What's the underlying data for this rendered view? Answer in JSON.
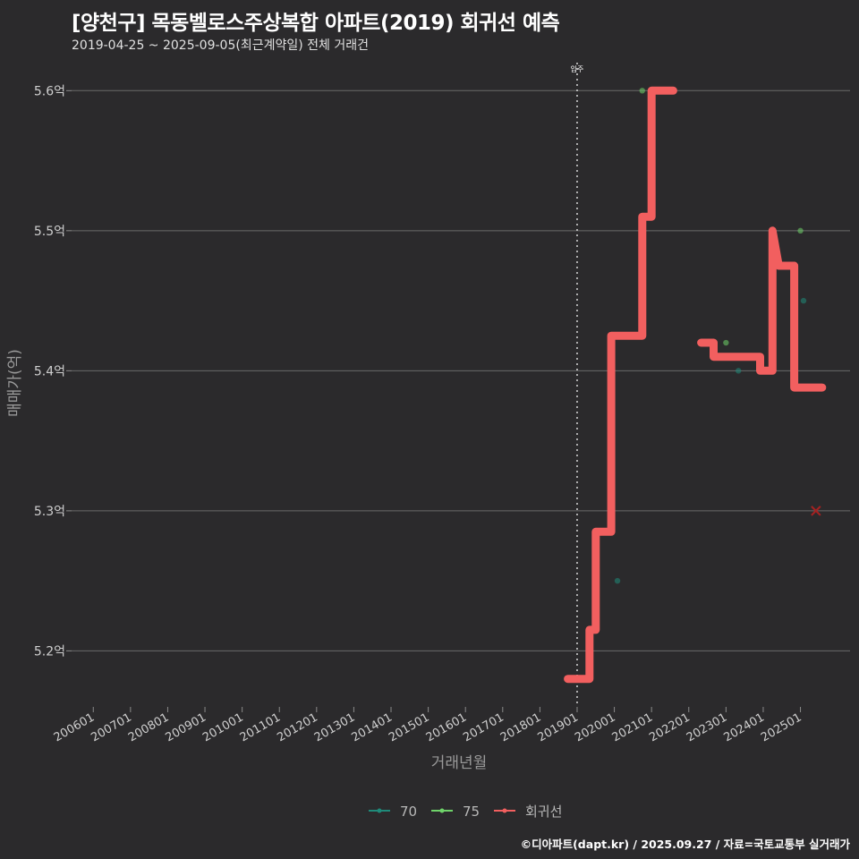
{
  "header": {
    "title": "[양천구] 목동벨로스주상복합 아파트(2019) 회귀선 예측",
    "subtitle": "2019-04-25 ~ 2025-09-05(최근계약일) 전체 거래건"
  },
  "footer": {
    "caption": "©디아파트(dapt.kr) / 2025.09.27 / 자료=국토교통부 실거래가"
  },
  "colors": {
    "background": "#2b2a2c",
    "grid": "#6a6a6a",
    "series_70": "#1f8a7a",
    "series_75": "#6fd36a",
    "regression": "#f25f5f",
    "cross": "#a52222"
  },
  "chart_data": {
    "type": "line",
    "title": "[양천구] 목동벨로스주상복합 아파트(2019) 회귀선 예측",
    "subtitle": "2019-04-25 ~ 2025-09-05(최근계약일) 전체 거래건",
    "xlabel": "거래년월",
    "ylabel": "매매가(억)",
    "ylim": [
      5.16,
      5.62
    ],
    "xlim": [
      "2005-06",
      "2026-05"
    ],
    "grid": true,
    "legend_position": "bottom",
    "x_ticks": [
      "2006-01",
      "2007-01",
      "2008-01",
      "2009-01",
      "2010-01",
      "2011-01",
      "2012-01",
      "2013-01",
      "2014-01",
      "2015-01",
      "2016-01",
      "2017-01",
      "2018-01",
      "2019-01",
      "2020-01",
      "2021-01",
      "2022-01",
      "2023-01",
      "2024-01",
      "2025-01"
    ],
    "x_tick_labels": [
      "200601",
      "200701",
      "200801",
      "200901",
      "201001",
      "201101",
      "201201",
      "201301",
      "201401",
      "201501",
      "201601",
      "201701",
      "201801",
      "201901",
      "202001",
      "202101",
      "202201",
      "202301",
      "202401",
      "202501"
    ],
    "y_ticks": [
      5.2,
      5.3,
      5.4,
      5.5,
      5.6
    ],
    "y_tick_labels": [
      "5.2억",
      "5.3억",
      "5.4억",
      "5.5억",
      "5.6억"
    ],
    "vline": {
      "x": "2019-01",
      "label": "입주"
    },
    "legend": [
      "70",
      "75",
      "회귀선"
    ],
    "series": [
      {
        "name": "70",
        "kind": "points",
        "color": "#1f8a7a",
        "points": [
          {
            "x": "2020-02",
            "y": 5.25
          },
          {
            "x": "2023-05",
            "y": 5.4
          },
          {
            "x": "2025-02",
            "y": 5.45
          }
        ]
      },
      {
        "name": "75",
        "kind": "points",
        "color": "#6fd36a",
        "points": [
          {
            "x": "2020-10",
            "y": 5.6
          },
          {
            "x": "2023-01",
            "y": 5.42
          },
          {
            "x": "2025-01",
            "y": 5.5
          }
        ]
      },
      {
        "name": "회귀선",
        "kind": "line",
        "color": "#f25f5f",
        "segments": [
          [
            {
              "x": "2018-10",
              "y": 5.18
            },
            {
              "x": "2019-05",
              "y": 5.18
            },
            {
              "x": "2019-05",
              "y": 5.215
            },
            {
              "x": "2019-07",
              "y": 5.215
            },
            {
              "x": "2019-07",
              "y": 5.285
            },
            {
              "x": "2019-12",
              "y": 5.285
            },
            {
              "x": "2019-12",
              "y": 5.425
            },
            {
              "x": "2020-10",
              "y": 5.425
            },
            {
              "x": "2020-10",
              "y": 5.51
            },
            {
              "x": "2021-01",
              "y": 5.51
            },
            {
              "x": "2021-01",
              "y": 5.6
            },
            {
              "x": "2021-08",
              "y": 5.6
            }
          ],
          [
            {
              "x": "2022-05",
              "y": 5.42
            },
            {
              "x": "2022-09",
              "y": 5.42
            },
            {
              "x": "2022-09",
              "y": 5.41
            },
            {
              "x": "2023-12",
              "y": 5.41
            },
            {
              "x": "2023-12",
              "y": 5.4
            },
            {
              "x": "2024-04",
              "y": 5.4
            },
            {
              "x": "2024-04",
              "y": 5.5
            },
            {
              "x": "2024-06",
              "y": 5.475
            },
            {
              "x": "2024-11",
              "y": 5.475
            },
            {
              "x": "2024-11",
              "y": 5.388
            },
            {
              "x": "2025-08",
              "y": 5.388
            }
          ]
        ]
      }
    ],
    "crosses": [
      {
        "x": "2025-06",
        "y": 5.3
      }
    ]
  }
}
